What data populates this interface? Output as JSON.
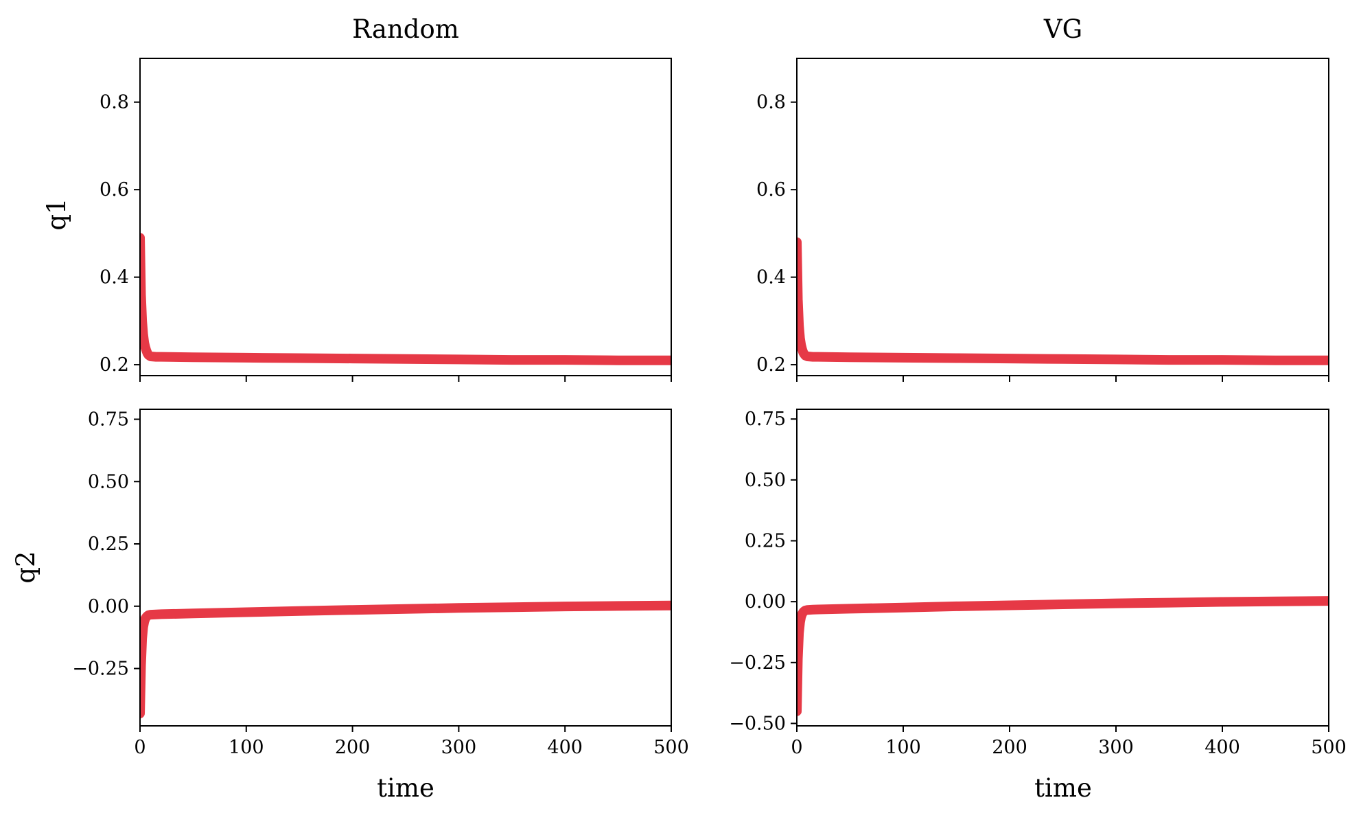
{
  "chart_data": [
    {
      "type": "scatter",
      "title": "Random",
      "xlabel": "",
      "ylabel": "q1",
      "xlim": [
        0,
        500
      ],
      "ylim": [
        0.175,
        0.9
      ],
      "xticks": [
        0,
        100,
        200,
        300,
        400,
        500
      ],
      "xticklabels_shown": false,
      "yticks": [
        0.2,
        0.4,
        0.6,
        0.8
      ],
      "yticklabels": [
        "0.2",
        "0.4",
        "0.6",
        "0.8"
      ],
      "colors": {
        "points": "#e63946",
        "underlay": "#1d3557"
      },
      "series": [
        {
          "x": [
            0,
            1,
            2,
            3,
            4,
            5,
            6,
            7,
            8,
            10,
            15,
            20,
            50,
            100,
            150,
            200,
            250,
            300,
            350,
            400,
            450,
            500
          ],
          "y": [
            0.49,
            0.36,
            0.3,
            0.27,
            0.25,
            0.24,
            0.232,
            0.226,
            0.222,
            0.219,
            0.218,
            0.218,
            0.217,
            0.216,
            0.215,
            0.214,
            0.213,
            0.212,
            0.211,
            0.211,
            0.21,
            0.21
          ]
        }
      ]
    },
    {
      "type": "scatter",
      "title": "VG",
      "xlabel": "",
      "ylabel": "",
      "xlim": [
        0,
        500
      ],
      "ylim": [
        0.175,
        0.9
      ],
      "xticks": [
        0,
        100,
        200,
        300,
        400,
        500
      ],
      "xticklabels_shown": false,
      "yticks": [
        0.2,
        0.4,
        0.6,
        0.8
      ],
      "yticklabels": [
        "0.2",
        "0.4",
        "0.6",
        "0.8"
      ],
      "colors": {
        "points": "#e63946",
        "underlay": "#1d3557"
      },
      "series": [
        {
          "x": [
            0,
            1,
            2,
            3,
            4,
            5,
            6,
            7,
            8,
            10,
            15,
            20,
            50,
            100,
            150,
            200,
            250,
            300,
            350,
            400,
            450,
            500
          ],
          "y": [
            0.48,
            0.35,
            0.29,
            0.26,
            0.245,
            0.235,
            0.228,
            0.224,
            0.221,
            0.219,
            0.218,
            0.218,
            0.217,
            0.216,
            0.215,
            0.214,
            0.213,
            0.212,
            0.211,
            0.211,
            0.21,
            0.21
          ]
        }
      ]
    },
    {
      "type": "scatter",
      "title": "",
      "xlabel": "time",
      "ylabel": "q2",
      "xlim": [
        0,
        500
      ],
      "ylim": [
        -0.48,
        0.79
      ],
      "xticks": [
        0,
        100,
        200,
        300,
        400,
        500
      ],
      "xticklabels": [
        "0",
        "100",
        "200",
        "300",
        "400",
        "500"
      ],
      "xticklabels_shown": true,
      "yticks": [
        -0.25,
        0.0,
        0.25,
        0.5,
        0.75
      ],
      "yticklabels": [
        "−0.25",
        "0.00",
        "0.25",
        "0.50",
        "0.75"
      ],
      "colors": {
        "points": "#e63946",
        "underlay": "#1d3557"
      },
      "series": [
        {
          "x": [
            0,
            1,
            2,
            3,
            4,
            5,
            6,
            7,
            8,
            10,
            15,
            20,
            50,
            100,
            150,
            200,
            250,
            300,
            350,
            400,
            450,
            500
          ],
          "y": [
            -0.43,
            -0.24,
            -0.13,
            -0.085,
            -0.062,
            -0.05,
            -0.043,
            -0.039,
            -0.036,
            -0.034,
            -0.033,
            -0.032,
            -0.029,
            -0.024,
            -0.019,
            -0.015,
            -0.011,
            -0.007,
            -0.004,
            -0.001,
            0.001,
            0.003
          ]
        }
      ]
    },
    {
      "type": "scatter",
      "title": "",
      "xlabel": "time",
      "ylabel": "",
      "xlim": [
        0,
        500
      ],
      "ylim": [
        -0.51,
        0.79
      ],
      "xticks": [
        0,
        100,
        200,
        300,
        400,
        500
      ],
      "xticklabels": [
        "0",
        "100",
        "200",
        "300",
        "400",
        "500"
      ],
      "xticklabels_shown": true,
      "yticks": [
        -0.5,
        -0.25,
        0.0,
        0.25,
        0.5,
        0.75
      ],
      "yticklabels": [
        "−0.50",
        "−0.25",
        "0.00",
        "0.25",
        "0.50",
        "0.75"
      ],
      "colors": {
        "points": "#e63946",
        "underlay": "#1d3557"
      },
      "series": [
        {
          "x": [
            0,
            1,
            2,
            3,
            4,
            5,
            6,
            7,
            8,
            10,
            15,
            20,
            50,
            100,
            150,
            200,
            250,
            300,
            350,
            400,
            450,
            500
          ],
          "y": [
            -0.45,
            -0.235,
            -0.13,
            -0.085,
            -0.062,
            -0.05,
            -0.043,
            -0.039,
            -0.036,
            -0.034,
            -0.033,
            -0.032,
            -0.029,
            -0.024,
            -0.019,
            -0.015,
            -0.011,
            -0.007,
            -0.004,
            -0.001,
            0.001,
            0.003
          ]
        }
      ]
    }
  ]
}
